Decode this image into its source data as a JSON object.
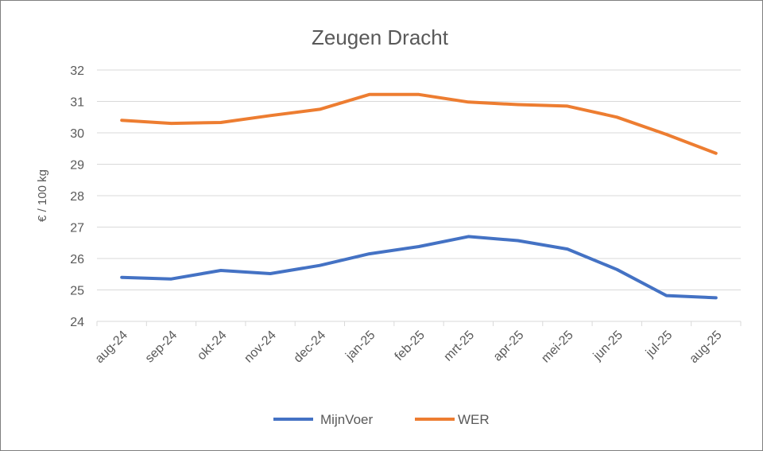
{
  "chart_data": {
    "type": "line",
    "title": "Zeugen Dracht",
    "ylabel": "€ / 100 kg",
    "xlabel": "",
    "ylim": [
      24,
      32
    ],
    "yticks": [
      24,
      25,
      26,
      27,
      28,
      29,
      30,
      31,
      32
    ],
    "categories": [
      "aug-24",
      "sep-24",
      "okt-24",
      "nov-24",
      "dec-24",
      "jan-25",
      "feb-25",
      "mrt-25",
      "apr-25",
      "mei-25",
      "jun-25",
      "jul-25",
      "aug-25"
    ],
    "grid": "horizontal",
    "legend": "bottom",
    "series": [
      {
        "name": "MijnVoer",
        "color": "#4472c4",
        "values": [
          25.4,
          25.35,
          25.62,
          25.52,
          25.78,
          26.15,
          26.38,
          26.7,
          26.57,
          26.3,
          25.65,
          24.82,
          24.75
        ]
      },
      {
        "name": "WER",
        "color": "#ed7d31",
        "values": [
          30.4,
          30.3,
          30.33,
          30.55,
          30.75,
          31.22,
          31.22,
          30.98,
          30.9,
          30.85,
          30.5,
          29.95,
          29.35
        ]
      }
    ]
  }
}
